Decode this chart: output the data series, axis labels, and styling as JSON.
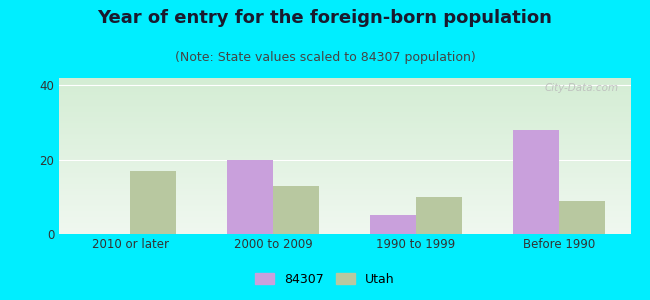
{
  "title": "Year of entry for the foreign-born population",
  "subtitle": "(Note: State values scaled to 84307 population)",
  "categories": [
    "2010 or later",
    "2000 to 2009",
    "1990 to 1999",
    "Before 1990"
  ],
  "values_84307": [
    0,
    20,
    5,
    28
  ],
  "values_utah": [
    17,
    13,
    10,
    9
  ],
  "color_84307": "#c9a0dc",
  "color_utah": "#b8c8a0",
  "ylim": [
    0,
    42
  ],
  "yticks": [
    0,
    20,
    40
  ],
  "bar_width": 0.32,
  "background_color": "#00eeff",
  "plot_bg_top": "#d4edd4",
  "plot_bg_bottom": "#f0f8f0",
  "legend_84307": "84307",
  "legend_utah": "Utah",
  "title_fontsize": 13,
  "subtitle_fontsize": 9,
  "tick_fontsize": 8.5,
  "legend_fontsize": 9,
  "watermark": "City-Data.com"
}
